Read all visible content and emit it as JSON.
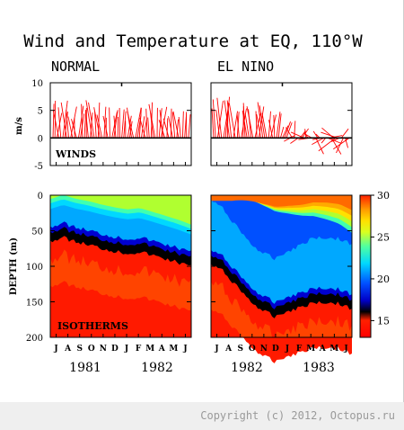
{
  "figure": {
    "title": "Wind and Temperature at EQ, 110°W",
    "panels": {
      "left_label": "NORMAL",
      "right_label": "EL NINO"
    },
    "winds_label": "WINDS",
    "isotherms_label": "ISOTHERMS",
    "wind_ylabel": "m/s",
    "depth_ylabel": "DEPTH (m)",
    "wind_ticks": [
      "10",
      "5",
      "0",
      "-5"
    ],
    "depth_ticks": [
      "0",
      "50",
      "100",
      "150",
      "200"
    ],
    "colorbar_ticks": [
      "30",
      "25",
      "20",
      "15"
    ],
    "month_ticks": [
      "J",
      "A",
      "S",
      "O",
      "N",
      "D",
      "J",
      "F",
      "M",
      "A",
      "M",
      "J"
    ],
    "left_years": [
      "1981",
      "1982"
    ],
    "right_years": [
      "1982",
      "1983"
    ]
  },
  "footer": {
    "copyright": "Copyright (c) 2012, Octopus.ru"
  },
  "colors": {
    "wind": "#ff0000",
    "thermocline": "#000000",
    "scale": [
      "#ff2a00",
      "#ff6a00",
      "#ffaa00",
      "#ffe100",
      "#e8ff00",
      "#b0ff30",
      "#40ffb0",
      "#00e8ff",
      "#00a8ff",
      "#0050ff",
      "#0000d0",
      "#000000"
    ]
  },
  "chart_data": [
    {
      "type": "line",
      "panel": "NORMAL winds",
      "x": [
        "J",
        "A",
        "S",
        "O",
        "N",
        "D",
        "J",
        "F",
        "M",
        "A",
        "M",
        "J"
      ],
      "series": [
        {
          "values": [
            5.5,
            6,
            4.5,
            5.5,
            5,
            4.5,
            4,
            4.5,
            5,
            4.5,
            4.5,
            5.5
          ]
        }
      ],
      "ylabel": "m/s",
      "ylim": [
        -5,
        10
      ]
    },
    {
      "type": "line",
      "panel": "EL NINO winds",
      "x": [
        "J",
        "A",
        "S",
        "O",
        "N",
        "D",
        "J",
        "F",
        "M",
        "A",
        "M",
        "J"
      ],
      "series": [
        {
          "values": [
            6,
            6.5,
            5.5,
            5.5,
            5,
            4,
            2,
            0.5,
            -1,
            -1,
            -0.5,
            -1
          ]
        }
      ],
      "ylabel": "m/s",
      "ylim": [
        -5,
        10
      ]
    },
    {
      "type": "heatmap",
      "panel": "NORMAL isotherms",
      "x": [
        "J",
        "A",
        "S",
        "O",
        "N",
        "D",
        "J",
        "F",
        "M",
        "A",
        "M",
        "J"
      ],
      "ylabel": "DEPTH (m)",
      "ylim": [
        0,
        200
      ],
      "zlim": [
        13,
        30
      ],
      "thermocline_depth_m": [
        52,
        47,
        53,
        57,
        62,
        66,
        69,
        67,
        72,
        77,
        82,
        88
      ]
    },
    {
      "type": "heatmap",
      "panel": "EL NINO isotherms",
      "x": [
        "J",
        "A",
        "S",
        "O",
        "N",
        "D",
        "J",
        "F",
        "M",
        "A",
        "M",
        "J"
      ],
      "ylabel": "DEPTH (m)",
      "ylim": [
        0,
        200
      ],
      "zlim": [
        13,
        30
      ],
      "thermocline_depth_m": [
        85,
        95,
        115,
        135,
        150,
        158,
        150,
        145,
        138,
        138,
        140,
        148
      ]
    }
  ]
}
